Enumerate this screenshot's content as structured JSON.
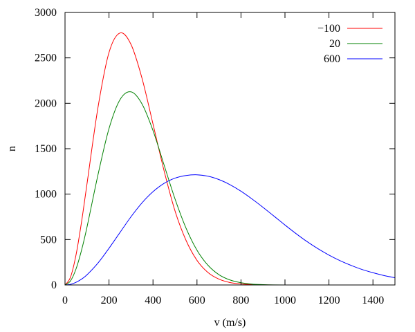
{
  "chart_data": {
    "type": "line",
    "title": "",
    "xlabel": "v (m/s)",
    "ylabel": "n",
    "xlim": [
      0,
      1500
    ],
    "ylim": [
      0,
      3000
    ],
    "x_ticks": [
      0,
      200,
      400,
      600,
      800,
      1000,
      1200,
      1400
    ],
    "y_ticks": [
      0,
      500,
      1000,
      1500,
      2000,
      2500,
      3000
    ],
    "x_tick_labels": [
      "0",
      "200",
      "400",
      "600",
      "800",
      "1000",
      "1200",
      "1400"
    ],
    "y_tick_labels": [
      "0",
      "500",
      "1000",
      "1500",
      "2000",
      "2500",
      "3000"
    ],
    "grid": false,
    "legend_position": "top-right",
    "x": [
      0,
      25,
      50,
      75,
      100,
      150,
      200,
      250,
      300,
      350,
      400,
      450,
      500,
      550,
      600,
      650,
      700,
      750,
      800,
      850,
      900,
      950,
      1000,
      1050,
      1100,
      1150,
      1200,
      1250,
      1300,
      1350,
      1400,
      1450,
      1500
    ],
    "series": [
      {
        "name": "−100",
        "color": "#ff0000",
        "values": [
          0,
          86,
          330,
          692,
          1114,
          1956,
          2559,
          2774,
          2648,
          2276,
          1772,
          1261,
          816,
          492,
          271,
          137,
          64,
          27,
          11,
          4,
          1,
          0,
          0,
          0,
          0,
          0,
          0,
          0,
          0,
          0,
          0,
          0,
          0
        ]
      },
      {
        "name": "20",
        "color": "#008000",
        "values": [
          0,
          45,
          176,
          382,
          638,
          1214,
          1722,
          2040,
          2126,
          1993,
          1700,
          1324,
          948,
          627,
          383,
          217,
          113,
          55,
          25,
          10,
          4,
          1,
          0,
          0,
          0,
          0,
          0,
          0,
          0,
          0,
          0,
          0,
          0
        ]
      },
      {
        "name": "600",
        "color": "#0000ff",
        "values": [
          0,
          7,
          29,
          64,
          112,
          242,
          404,
          578,
          751,
          904,
          1027,
          1118,
          1176,
          1205,
          1213,
          1197,
          1160,
          1104,
          1032,
          947,
          855,
          758,
          660,
          566,
          478,
          399,
          329,
          268,
          216,
          171,
          135,
          104,
          80
        ]
      }
    ]
  }
}
